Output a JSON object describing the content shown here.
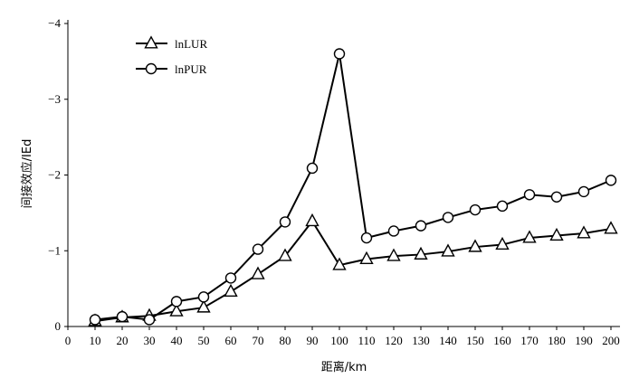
{
  "chart_data": {
    "type": "line",
    "title": "",
    "xlabel": "距离/km",
    "ylabel": "间接效应/IEd",
    "xlim": [
      0,
      200
    ],
    "ylim": [
      0,
      -4
    ],
    "x_ticks": [
      0,
      10,
      20,
      30,
      40,
      50,
      60,
      70,
      80,
      90,
      100,
      110,
      120,
      130,
      140,
      150,
      160,
      170,
      180,
      190,
      200
    ],
    "y_ticks": [
      0,
      -1,
      -2,
      -3,
      -4
    ],
    "y_tick_labels": [
      "0",
      "−1",
      "−2",
      "−3",
      "−4"
    ],
    "grid": false,
    "legend_position": "top-left",
    "x": [
      10,
      20,
      30,
      40,
      50,
      60,
      70,
      80,
      90,
      100,
      110,
      120,
      130,
      140,
      150,
      160,
      170,
      180,
      190,
      200
    ],
    "series": [
      {
        "name": "lnLUR",
        "marker": "triangle",
        "values": [
          -0.07,
          -0.12,
          -0.14,
          -0.2,
          -0.25,
          -0.46,
          -0.69,
          -0.93,
          -1.39,
          -0.81,
          -0.89,
          -0.93,
          -0.95,
          -0.99,
          -1.05,
          -1.08,
          -1.17,
          -1.2,
          -1.23,
          -1.29
        ]
      },
      {
        "name": "lnPUR",
        "marker": "circle",
        "values": [
          -0.09,
          -0.13,
          -0.09,
          -0.33,
          -0.39,
          -0.64,
          -1.02,
          -1.38,
          -2.09,
          -3.6,
          -1.17,
          -1.26,
          -1.33,
          -1.44,
          -1.54,
          -1.59,
          -1.74,
          -1.71,
          -1.78,
          -1.93
        ]
      }
    ]
  }
}
